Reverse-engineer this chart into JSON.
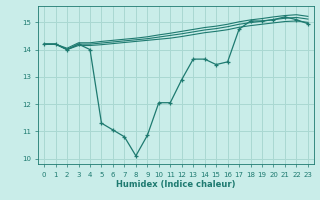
{
  "xlabel": "Humidex (Indice chaleur)",
  "xlim": [
    -0.5,
    23.5
  ],
  "ylim": [
    9.8,
    15.6
  ],
  "yticks": [
    10,
    11,
    12,
    13,
    14,
    15
  ],
  "xticks": [
    0,
    1,
    2,
    3,
    4,
    5,
    6,
    7,
    8,
    9,
    10,
    11,
    12,
    13,
    14,
    15,
    16,
    17,
    18,
    19,
    20,
    21,
    22,
    23
  ],
  "bg_color": "#c9ede9",
  "grid_color": "#aad8d2",
  "line_color": "#1e7a70",
  "line1_x": [
    0,
    1,
    2,
    3,
    4,
    5,
    6,
    7,
    8,
    9,
    10,
    11,
    12,
    13,
    14,
    15,
    16,
    17,
    18,
    19,
    20,
    21,
    22,
    23
  ],
  "line1_y": [
    14.2,
    14.2,
    14.0,
    14.2,
    14.0,
    11.3,
    11.05,
    10.8,
    10.1,
    10.85,
    12.05,
    12.05,
    12.9,
    13.65,
    13.65,
    13.45,
    13.55,
    14.75,
    15.05,
    15.05,
    15.1,
    15.2,
    15.1,
    14.95
  ],
  "line2_x": [
    0,
    1,
    2,
    3,
    4,
    5,
    6,
    7,
    8,
    9,
    10,
    11,
    12,
    13,
    14,
    15,
    16,
    17,
    18,
    19,
    20,
    21,
    22,
    23
  ],
  "line2_y": [
    14.2,
    14.2,
    14.0,
    14.15,
    14.15,
    14.18,
    14.22,
    14.26,
    14.3,
    14.34,
    14.38,
    14.42,
    14.48,
    14.55,
    14.62,
    14.67,
    14.73,
    14.82,
    14.88,
    14.93,
    14.98,
    15.03,
    15.05,
    15.0
  ],
  "line3_x": [
    0,
    1,
    2,
    3,
    4,
    5,
    6,
    7,
    8,
    9,
    10,
    11,
    12,
    13,
    14,
    15,
    16,
    17,
    18,
    19,
    20,
    21,
    22,
    23
  ],
  "line3_y": [
    14.2,
    14.2,
    14.0,
    14.2,
    14.2,
    14.24,
    14.28,
    14.32,
    14.36,
    14.4,
    14.46,
    14.52,
    14.58,
    14.65,
    14.72,
    14.77,
    14.84,
    14.93,
    14.99,
    15.04,
    15.1,
    15.15,
    15.18,
    15.12
  ],
  "line4_x": [
    0,
    1,
    2,
    3,
    4,
    5,
    6,
    7,
    8,
    9,
    10,
    11,
    12,
    13,
    14,
    15,
    16,
    17,
    18,
    19,
    20,
    21,
    22,
    23
  ],
  "line4_y": [
    14.2,
    14.2,
    14.05,
    14.25,
    14.25,
    14.3,
    14.34,
    14.38,
    14.42,
    14.47,
    14.54,
    14.6,
    14.67,
    14.74,
    14.81,
    14.86,
    14.93,
    15.02,
    15.09,
    15.14,
    15.2,
    15.25,
    15.28,
    15.22
  ]
}
